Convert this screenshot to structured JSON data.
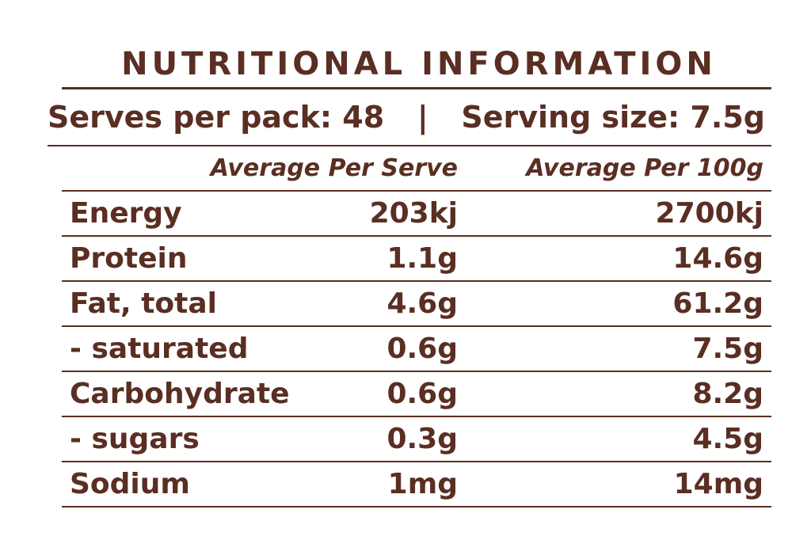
{
  "title": "NUTRITIONAL INFORMATION",
  "serves": {
    "serves_per_pack": "Serves per pack: 48",
    "separator": "|",
    "serving_size": "Serving size: 7.5g"
  },
  "columns": {
    "per_serve": "Average Per Serve",
    "per_100g": "Average Per 100g"
  },
  "rows": [
    {
      "name": "Energy",
      "per_serve": "203kj",
      "per_100g": "2700kj"
    },
    {
      "name": "Protein",
      "per_serve": "1.1g",
      "per_100g": "14.6g"
    },
    {
      "name": "Fat, total",
      "per_serve": "4.6g",
      "per_100g": "61.2g"
    },
    {
      "name": "- saturated",
      "per_serve": "0.6g",
      "per_100g": "7.5g"
    },
    {
      "name": "Carbohydrate",
      "per_serve": "0.6g",
      "per_100g": "8.2g"
    },
    {
      "name": "- sugars",
      "per_serve": "0.3g",
      "per_100g": "4.5g"
    },
    {
      "name": "Sodium",
      "per_serve": "1mg",
      "per_100g": "14mg"
    }
  ],
  "colors": {
    "text": "#5a2e22",
    "background": "#ffffff"
  }
}
